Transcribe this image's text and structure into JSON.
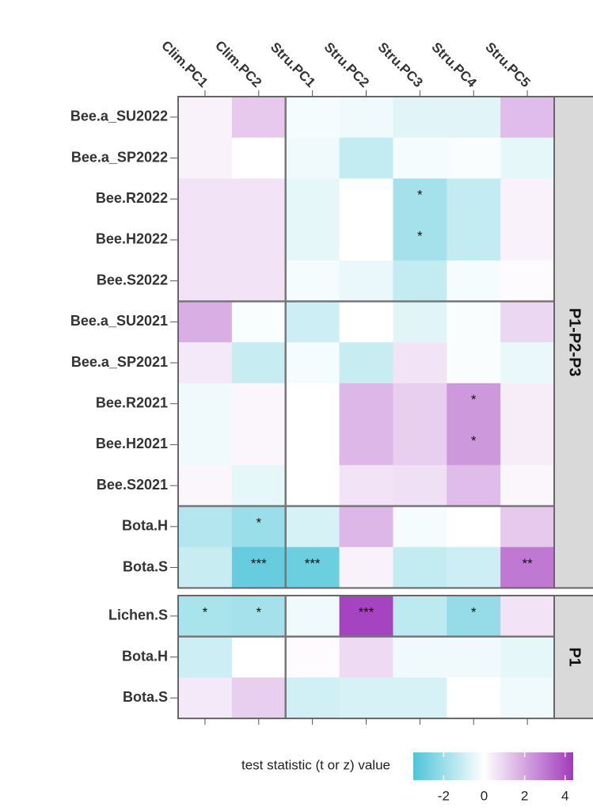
{
  "chart_data": {
    "type": "heatmap",
    "columns": [
      "Clim.PC1",
      "Clim.PC2",
      "Stru.PC1",
      "Stru.PC2",
      "Stru.PC3",
      "Stru.PC4",
      "Stru.PC5"
    ],
    "panels": [
      {
        "name": "P1-P2-P3",
        "rows": [
          "Bee.a_SU2022",
          "Bee.a_SP2022",
          "Bee.R2022",
          "Bee.H2022",
          "Bee.S2022",
          "Bee.a_SU2021",
          "Bee.a_SP2021",
          "Bee.R2021",
          "Bee.H2021",
          "Bee.S2021",
          "Bota.H",
          "Bota.S"
        ],
        "values": [
          [
            0.3,
            1.2,
            -0.2,
            -0.3,
            -0.6,
            -0.6,
            1.5
          ],
          [
            0.3,
            0,
            -0.3,
            -1.2,
            -0.2,
            -0.1,
            -0.5
          ],
          [
            0.6,
            0.6,
            -0.5,
            0,
            -1.8,
            -1.2,
            0.3
          ],
          [
            0.6,
            0.6,
            -0.5,
            0,
            -1.8,
            -1.2,
            0.3
          ],
          [
            0.6,
            0.6,
            -0.2,
            -0.4,
            -1.2,
            -0.2,
            0.1
          ],
          [
            1.8,
            -0.1,
            -1.0,
            0,
            -0.6,
            -0.1,
            0.9
          ],
          [
            0.5,
            -1.1,
            -0.2,
            -1.1,
            0.6,
            -0.1,
            -0.4
          ],
          [
            -0.3,
            0.2,
            0,
            1.6,
            1.1,
            2.3,
            0.4
          ],
          [
            -0.3,
            0.2,
            0,
            1.6,
            1.1,
            2.3,
            0.4
          ],
          [
            0.2,
            -0.5,
            0,
            0.6,
            0.7,
            1.5,
            0.2
          ],
          [
            -1.5,
            -2.0,
            -0.8,
            1.6,
            -0.2,
            0,
            1.2
          ],
          [
            -1.1,
            -3.0,
            -2.9,
            0.3,
            -1.2,
            -1.0,
            3.0
          ]
        ],
        "annotations": [
          [
            null,
            null,
            null,
            null,
            null,
            null,
            null
          ],
          [
            null,
            null,
            null,
            null,
            null,
            null,
            null
          ],
          [
            null,
            null,
            null,
            null,
            "*",
            null,
            null
          ],
          [
            null,
            null,
            null,
            null,
            "*",
            null,
            null
          ],
          [
            null,
            null,
            null,
            null,
            null,
            null,
            null
          ],
          [
            null,
            null,
            null,
            null,
            null,
            null,
            null
          ],
          [
            null,
            null,
            null,
            null,
            null,
            null,
            null
          ],
          [
            null,
            null,
            null,
            null,
            null,
            "*",
            null
          ],
          [
            null,
            null,
            null,
            null,
            null,
            "*",
            null
          ],
          [
            null,
            null,
            null,
            null,
            null,
            null,
            null
          ],
          [
            null,
            "*",
            null,
            null,
            null,
            null,
            null
          ],
          [
            null,
            "***",
            "***",
            null,
            null,
            null,
            "**"
          ]
        ]
      },
      {
        "name": "P1",
        "rows": [
          "Lichen.S",
          "Bota.H",
          "Bota.S"
        ],
        "values": [
          [
            -1.7,
            -1.8,
            -0.3,
            4.2,
            -1.3,
            -2.1,
            0.6
          ],
          [
            -1.0,
            0,
            0.1,
            0.8,
            -0.3,
            -0.3,
            -0.5
          ],
          [
            0.5,
            1.1,
            -0.9,
            -0.8,
            -0.8,
            0,
            -0.3
          ]
        ],
        "annotations": [
          [
            "*",
            "*",
            null,
            "***",
            null,
            "*",
            null
          ],
          [
            null,
            null,
            null,
            null,
            null,
            null,
            null
          ],
          [
            null,
            null,
            null,
            null,
            null,
            null,
            null
          ]
        ]
      }
    ],
    "colorbar_title": "test statistic (t or z) value",
    "colorbar_lim": [
      -3.5,
      4.4
    ],
    "colorbar_ticks": [
      -2,
      0,
      2,
      4
    ],
    "colors": {
      "low": "#4ec5d8",
      "mid": "#ffffff",
      "high": "#a23abd"
    }
  }
}
